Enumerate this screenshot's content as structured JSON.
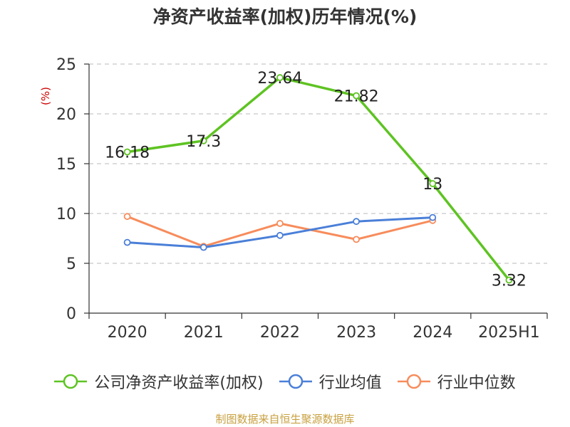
{
  "title": "净资产收益率(加权)历年情况(%)",
  "unit_label": "(%)",
  "source": "制图数据来自恒生聚源数据库",
  "colors": {
    "company": "#5ec322",
    "industry_avg": "#4a7fd8",
    "industry_median": "#f78c5c"
  },
  "chart_data": {
    "type": "line",
    "title": "净资产收益率(加权)历年情况(%)",
    "ylabel": "(%)",
    "categories": [
      "2020",
      "2021",
      "2022",
      "2023",
      "2024",
      "2025H1"
    ],
    "ylim": [
      0,
      25
    ],
    "yticks": [
      0,
      5,
      10,
      15,
      20,
      25
    ],
    "grid": true,
    "legend": "bottom",
    "series": [
      {
        "name": "公司净资产收益率(加权)",
        "values": [
          16.18,
          17.3,
          23.64,
          21.82,
          13,
          3.32
        ],
        "labels": [
          "16.18",
          "17.3",
          "23.64",
          "21.82",
          "13",
          "3.32"
        ]
      },
      {
        "name": "行业均值",
        "values": [
          7.1,
          6.6,
          7.8,
          9.2,
          9.6,
          null
        ]
      },
      {
        "name": "行业中位数",
        "values": [
          9.7,
          6.7,
          9.0,
          7.4,
          9.3,
          null
        ]
      }
    ]
  },
  "legend": {
    "company": "公司净资产收益率(加权)",
    "industry_avg": "行业均值",
    "industry_median": "行业中位数"
  }
}
